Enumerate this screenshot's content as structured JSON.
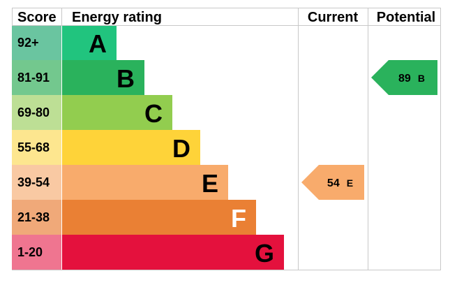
{
  "headers": {
    "score": "Score",
    "energy_rating": "Energy rating",
    "current": "Current",
    "potential": "Potential"
  },
  "chart_data": {
    "type": "bar",
    "bands": [
      {
        "score_range": "92+",
        "letter": "A",
        "color": "#21c47e",
        "score_color": "#6ac5a0",
        "letter_color": "#000000"
      },
      {
        "score_range": "81-91",
        "letter": "B",
        "color": "#2ab25c",
        "score_color": "#73c88e",
        "letter_color": "#000000"
      },
      {
        "score_range": "69-80",
        "letter": "C",
        "color": "#92cd4f",
        "score_color": "#bddf95",
        "letter_color": "#000000"
      },
      {
        "score_range": "55-68",
        "letter": "D",
        "color": "#fed339",
        "score_color": "#fde68f",
        "letter_color": "#000000"
      },
      {
        "score_range": "39-54",
        "letter": "E",
        "color": "#f8ab6c",
        "score_color": "#f9c9a3",
        "letter_color": "#000000"
      },
      {
        "score_range": "21-38",
        "letter": "F",
        "color": "#ea8034",
        "score_color": "#f0a979",
        "letter_color": "#ffffff"
      },
      {
        "score_range": "1-20",
        "letter": "G",
        "color": "#e4113d",
        "score_color": "#ef7590",
        "letter_color": "#000000"
      }
    ],
    "current": {
      "value": 54,
      "letter": "E",
      "color": "#f8ab6c"
    },
    "potential": {
      "value": 89,
      "letter": "B",
      "color": "#2ab25c"
    }
  }
}
